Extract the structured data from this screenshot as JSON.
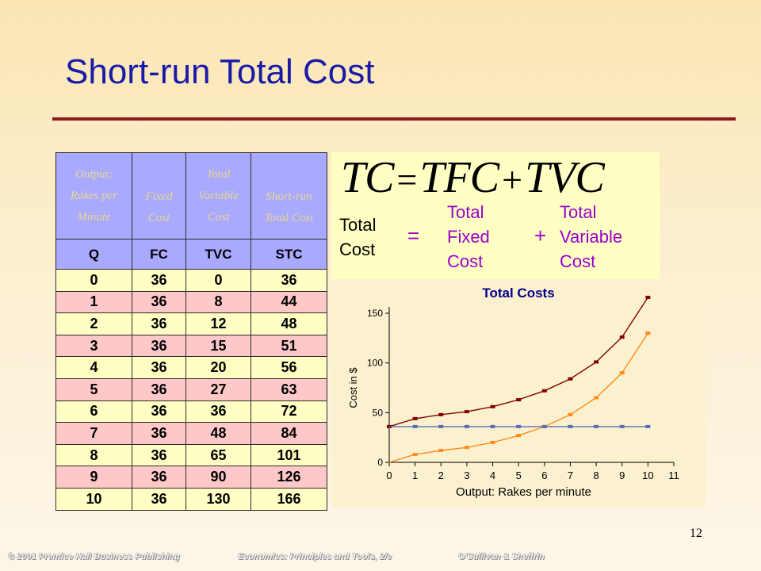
{
  "title": "Short-run Total Cost",
  "table": {
    "headers": [
      [
        "Output:",
        "Rakes per",
        "Minute"
      ],
      [
        "Fixed",
        "Cost"
      ],
      [
        "Total",
        "Variable",
        "Cost"
      ],
      [
        "Short-run",
        "Total Cost"
      ]
    ],
    "subheaders": [
      "Q",
      "FC",
      "TVC",
      "STC"
    ],
    "rows": [
      [
        "0",
        "36",
        "0",
        "36"
      ],
      [
        "1",
        "36",
        "8",
        "44"
      ],
      [
        "2",
        "36",
        "12",
        "48"
      ],
      [
        "3",
        "36",
        "15",
        "51"
      ],
      [
        "4",
        "36",
        "20",
        "56"
      ],
      [
        "5",
        "36",
        "27",
        "63"
      ],
      [
        "6",
        "36",
        "36",
        "72"
      ],
      [
        "7",
        "36",
        "48",
        "84"
      ],
      [
        "8",
        "36",
        "65",
        "101"
      ],
      [
        "9",
        "36",
        "90",
        "126"
      ],
      [
        "10",
        "36",
        "130",
        "166"
      ]
    ]
  },
  "equation": {
    "tc": "TC",
    "eq": "=",
    "tfc": "TFC",
    "plus": "+",
    "tvc": "TVC",
    "total_cost": [
      "Total",
      "Cost"
    ],
    "equals_word": "=",
    "total_fixed_cost": [
      "Total",
      "Fixed",
      "Cost"
    ],
    "plus_word": "+",
    "total_variable_cost": [
      "Total",
      "Variable",
      "Cost"
    ]
  },
  "chart_data": {
    "type": "line",
    "title": "Total Costs",
    "xlabel": "Output:  Rakes per minute",
    "ylabel": "Cost in $",
    "x": [
      0,
      1,
      2,
      3,
      4,
      5,
      6,
      7,
      8,
      9,
      10
    ],
    "x_ticks": [
      "0",
      "1",
      "2",
      "3",
      "4",
      "5",
      "6",
      "7",
      "8",
      "9",
      "10",
      "11"
    ],
    "y_ticks": [
      "0",
      "50",
      "100",
      "150"
    ],
    "xlim": [
      0,
      11
    ],
    "ylim": [
      0,
      150
    ],
    "series": [
      {
        "values": [
          36,
          44,
          48,
          51,
          56,
          63,
          72,
          84,
          101,
          126,
          166
        ],
        "color": "#800000"
      },
      {
        "values": [
          0,
          8,
          12,
          15,
          20,
          27,
          36,
          48,
          65,
          90,
          130
        ],
        "color": "#ff8c1a"
      },
      {
        "values": [
          36,
          36,
          36,
          36,
          36,
          36,
          36,
          36,
          36,
          36,
          36
        ],
        "color": "#5a6ab8"
      }
    ],
    "grid": false
  },
  "page_number": "12",
  "footer": {
    "copyright": "© 2001 Prentice Hall Business Publishing",
    "book": "Economics: Principles and Tools, 2/e",
    "authors": "O'Sullivan & Sheffrin"
  }
}
